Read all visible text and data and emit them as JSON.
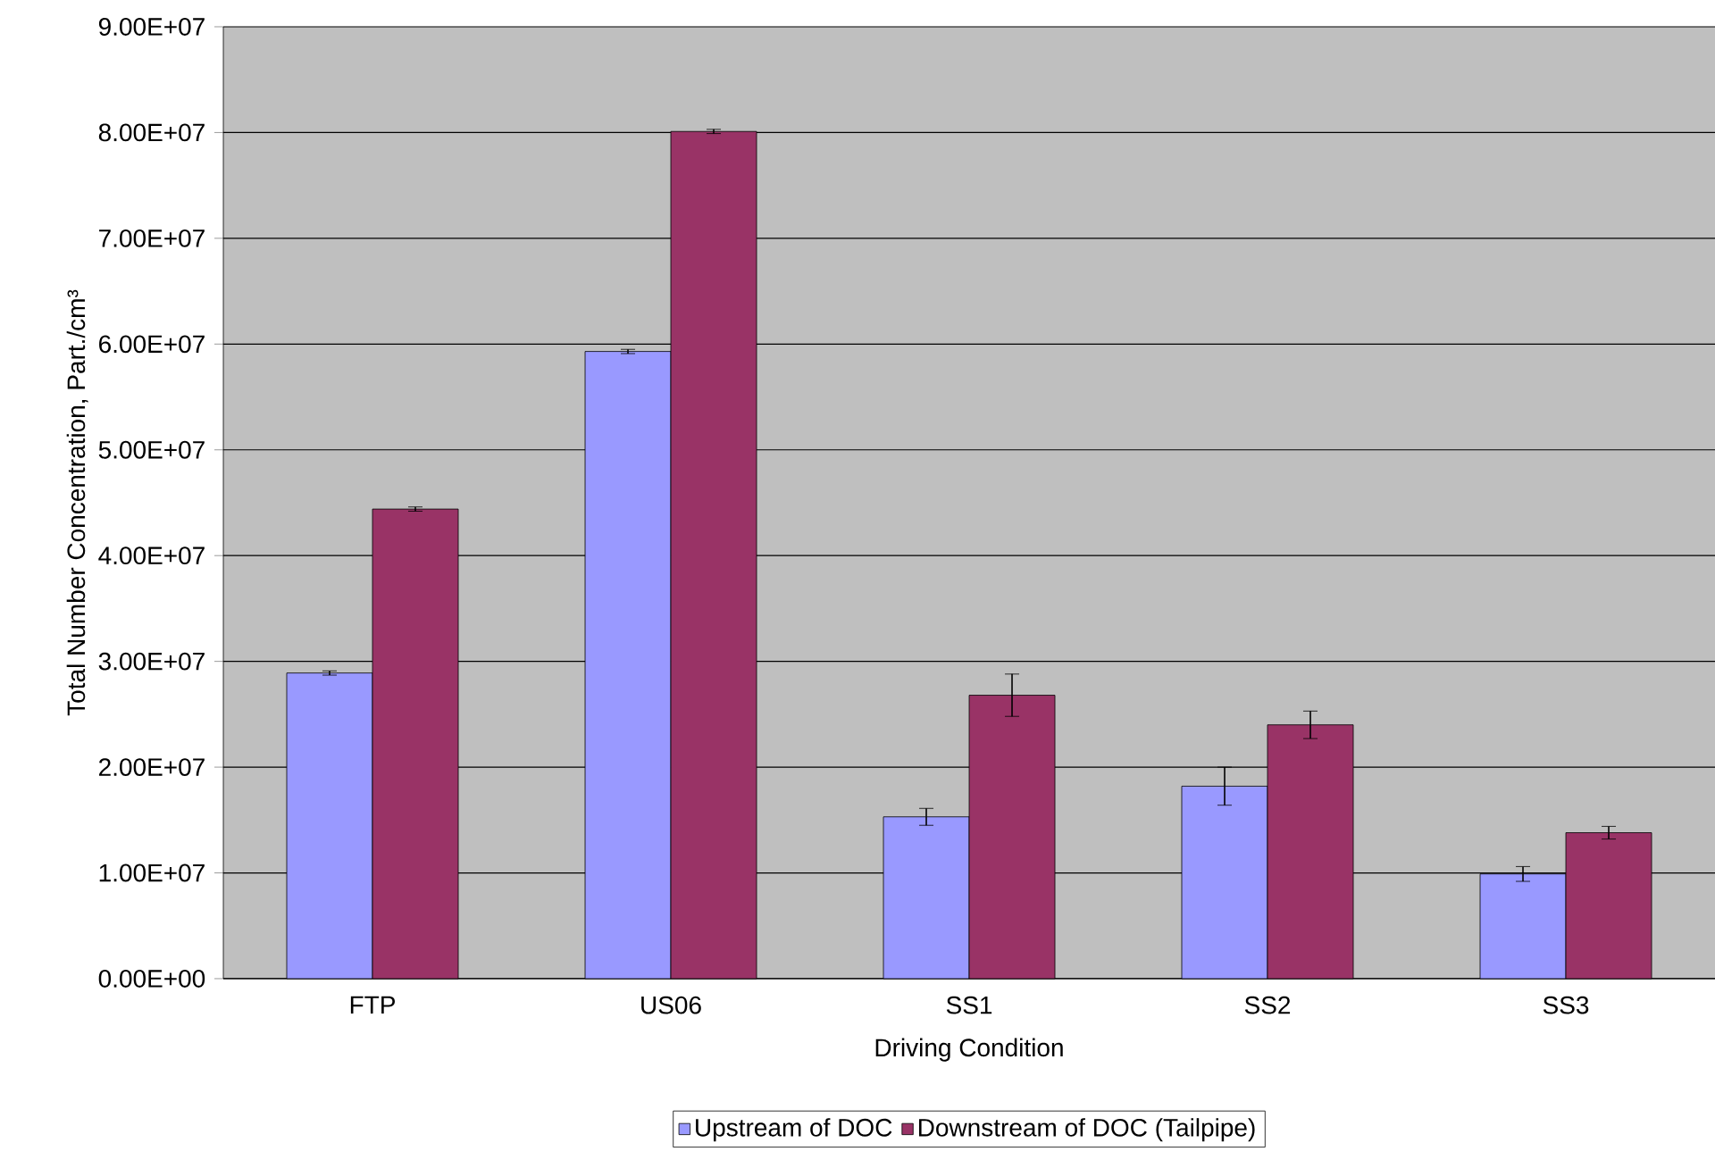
{
  "chart_data": {
    "type": "bar",
    "xlabel": "Driving Condition",
    "ylabel": "Total Number Concentration, Part./cm³",
    "categories": [
      "FTP",
      "US06",
      "SS1",
      "SS2",
      "SS3"
    ],
    "series": [
      {
        "name": "Upstream of DOC",
        "color": "#9999ff",
        "values": [
          28900000,
          59300000,
          15300000,
          18200000,
          9900000
        ],
        "errors": [
          200000,
          200000,
          800000,
          1800000,
          700000
        ]
      },
      {
        "name": "Downstream of DOC (Tailpipe)",
        "color": "#993366",
        "values": [
          44400000,
          80100000,
          26800000,
          24000000,
          13800000
        ],
        "errors": [
          200000,
          200000,
          2000000,
          1300000,
          600000
        ]
      }
    ],
    "ylim": [
      0,
      90000000
    ],
    "yticks": [
      {
        "value": 0,
        "label": "0.00E+00"
      },
      {
        "value": 10000000,
        "label": "1.00E+07"
      },
      {
        "value": 20000000,
        "label": "2.00E+07"
      },
      {
        "value": 30000000,
        "label": "3.00E+07"
      },
      {
        "value": 40000000,
        "label": "4.00E+07"
      },
      {
        "value": 50000000,
        "label": "5.00E+07"
      },
      {
        "value": 60000000,
        "label": "6.00E+07"
      },
      {
        "value": 70000000,
        "label": "7.00E+07"
      },
      {
        "value": 80000000,
        "label": "8.00E+07"
      },
      {
        "value": 90000000,
        "label": "9.00E+07"
      }
    ],
    "grid": "y",
    "legend": "bottom"
  }
}
